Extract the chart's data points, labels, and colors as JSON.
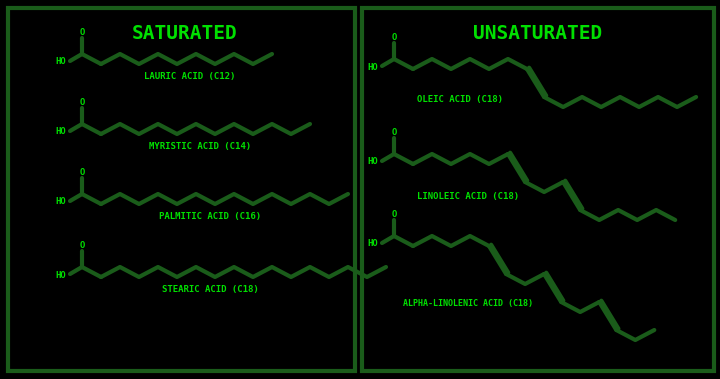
{
  "bg_color": "#000000",
  "line_color": "#1a5c1a",
  "box_color": "#1a5c1a",
  "text_color": "#00e000",
  "title_sat": "SATURATED",
  "title_unsat": "UNSATURATED",
  "label1": "LAURIC ACID (C12)",
  "label2": "MYRISTIC ACID (C14)",
  "label3": "PALMITIC ACID (C16)",
  "label4": "STEARIC ACID (C18)",
  "label5": "OLEIC ACID (C18)",
  "label6": "LINOLEIC ACID (C18)",
  "label7": "ALPHA-LINOLENIC ACID (C18)",
  "fig_width": 7.2,
  "fig_height": 3.79,
  "dpi": 100
}
